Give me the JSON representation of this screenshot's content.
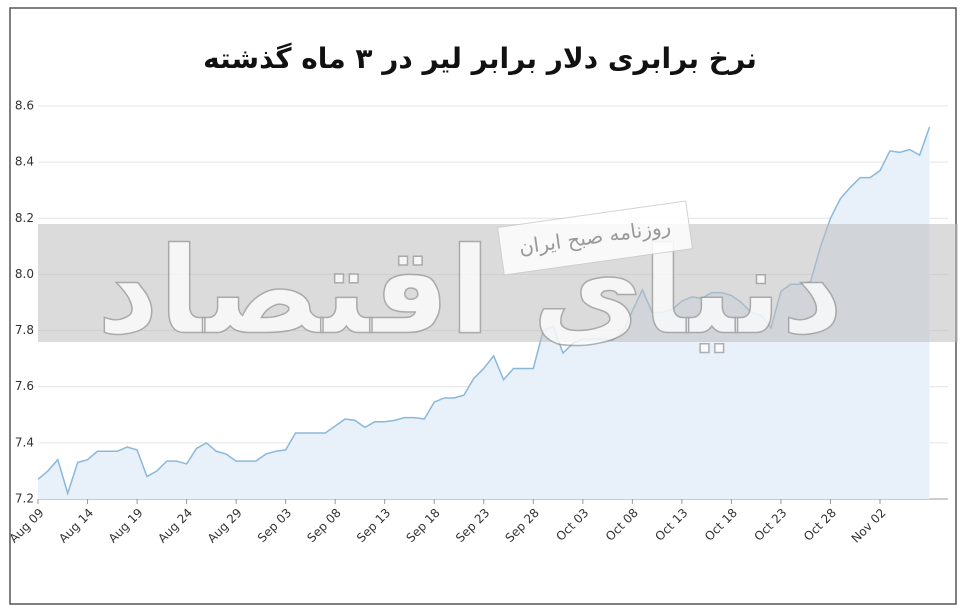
{
  "chart_data": {
    "type": "area",
    "title": "نرخ برابری دلار برابر لیر در ۳ ماه گذشته",
    "watermark": [
      "دنیای اقتصاد",
      "روزنامه صبح ایران"
    ],
    "categories": [
      "Aug 09",
      null,
      null,
      null,
      null,
      "Aug 14",
      null,
      null,
      null,
      null,
      "Aug 19",
      null,
      null,
      null,
      null,
      "Aug 24",
      null,
      null,
      null,
      null,
      "Aug 29",
      null,
      null,
      null,
      null,
      "Sep 03",
      null,
      null,
      null,
      null,
      "Sep 08",
      null,
      null,
      null,
      null,
      "Sep 13",
      null,
      null,
      null,
      null,
      "Sep 18",
      null,
      null,
      null,
      null,
      "Sep 23",
      null,
      null,
      null,
      null,
      "Sep 28",
      null,
      null,
      null,
      null,
      "Oct 03",
      null,
      null,
      null,
      null,
      "Oct 08",
      null,
      null,
      null,
      null,
      "Oct 13",
      null,
      null,
      null,
      null,
      "Oct 18",
      null,
      null,
      null,
      null,
      "Oct 23",
      null,
      null,
      null,
      null,
      "Oct 28",
      null,
      null,
      null,
      null,
      "Nov 02",
      null,
      null,
      null,
      null,
      null
    ],
    "values": [
      7.27,
      7.3,
      7.34,
      7.22,
      7.33,
      7.34,
      7.37,
      7.37,
      7.37,
      7.385,
      7.375,
      7.28,
      7.3,
      7.335,
      7.335,
      7.325,
      7.38,
      7.4,
      7.37,
      7.36,
      7.335,
      7.335,
      7.335,
      7.36,
      7.37,
      7.375,
      7.435,
      7.435,
      7.435,
      7.435,
      7.46,
      7.485,
      7.48,
      7.455,
      7.475,
      7.475,
      7.48,
      7.49,
      7.49,
      7.485,
      7.545,
      7.56,
      7.56,
      7.57,
      7.63,
      7.665,
      7.71,
      7.625,
      7.665,
      7.665,
      7.665,
      7.8,
      7.815,
      7.72,
      7.755,
      7.77,
      7.77,
      7.77,
      7.765,
      7.795,
      7.87,
      7.945,
      7.865,
      7.865,
      7.875,
      7.905,
      7.92,
      7.915,
      7.935,
      7.935,
      7.925,
      7.9,
      7.865,
      7.855,
      7.81,
      7.94,
      7.965,
      7.965,
      7.975,
      8.1,
      8.2,
      8.27,
      8.31,
      8.345,
      8.345,
      8.37,
      8.44,
      8.435,
      8.445,
      8.425,
      8.525
    ],
    "color": "#8ab8dc",
    "fill": "#e8f1fa",
    "ylim": [
      7.2,
      8.6
    ],
    "yticks": [
      7.2,
      7.4,
      7.6,
      7.8,
      {
        "value": 8,
        "label": "8.0"
      },
      8.2,
      8.4,
      8.6
    ],
    "grid": true
  }
}
